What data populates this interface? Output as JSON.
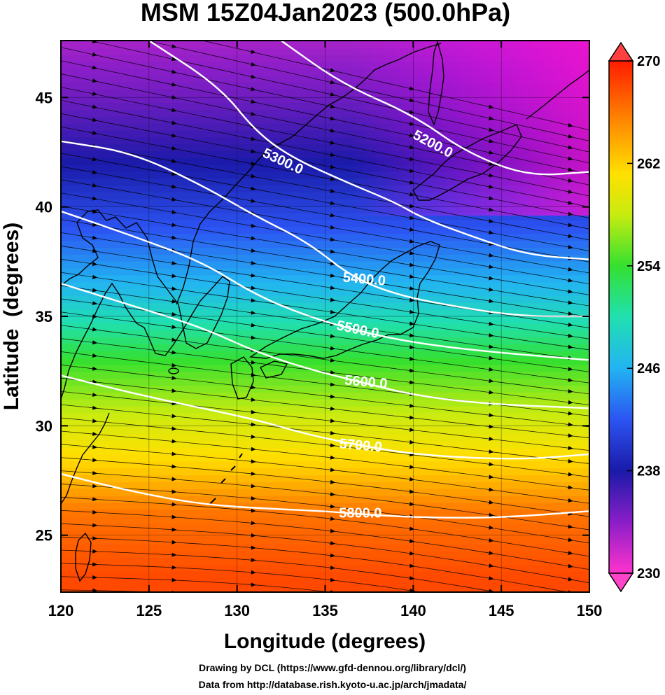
{
  "chart_data": {
    "type": "heatmap",
    "title": "MSM 15Z04Jan2023 (500.0hPa)",
    "xlabel": "Longitude (degrees)",
    "ylabel": "Latitude  (degrees)",
    "xlim": [
      120,
      150
    ],
    "ylim": [
      22.4,
      47.6
    ],
    "x_ticks": [
      120,
      125,
      130,
      135,
      140,
      145,
      150
    ],
    "y_ticks": [
      25,
      30,
      35,
      40,
      45
    ],
    "colorbar": {
      "min": 230,
      "max": 270,
      "ticks": [
        230,
        238,
        246,
        254,
        262,
        270
      ],
      "extend": "both"
    },
    "temperature_rows": [
      {
        "lat": 23,
        "value": 268
      },
      {
        "lat": 26,
        "value": 266
      },
      {
        "lat": 28,
        "value": 262
      },
      {
        "lat": 30,
        "value": 259
      },
      {
        "lat": 33,
        "value": 254
      },
      {
        "lat": 36,
        "value": 247
      },
      {
        "lat": 39,
        "value": 242
      },
      {
        "lat": 42,
        "value": 238
      },
      {
        "lat": 45,
        "value": 235
      },
      {
        "lat": 47.6,
        "value": 233
      }
    ],
    "contours": [
      {
        "label": "5200.0",
        "points": [
          [
            132.5,
            47.6
          ],
          [
            136,
            45.6
          ],
          [
            140,
            44.2
          ],
          [
            143,
            42.5
          ],
          [
            146.5,
            41.4
          ],
          [
            150,
            41.6
          ]
        ]
      },
      {
        "label": "5300.0",
        "points": [
          [
            125,
            47.6
          ],
          [
            129,
            45.5
          ],
          [
            131,
            43.5
          ],
          [
            133,
            42.3
          ],
          [
            136,
            41.2
          ],
          [
            139,
            40.2
          ],
          [
            140.5,
            39.5
          ],
          [
            143.5,
            38.6
          ],
          [
            146.5,
            37.8
          ],
          [
            150,
            37.6
          ]
        ]
      },
      {
        "label": "5400.0",
        "points": [
          [
            120,
            43.0
          ],
          [
            124,
            42.5
          ],
          [
            128,
            41.0
          ],
          [
            131,
            39.6
          ],
          [
            134,
            38.4
          ],
          [
            136.5,
            36.8
          ],
          [
            139,
            36.0
          ],
          [
            142,
            35.5
          ],
          [
            146,
            35.0
          ],
          [
            150,
            35.0
          ]
        ]
      },
      {
        "label": "5500.0",
        "points": [
          [
            120,
            39.8
          ],
          [
            124,
            38.7
          ],
          [
            128,
            37.5
          ],
          [
            131,
            36.0
          ],
          [
            134,
            35.0
          ],
          [
            137,
            34.3
          ],
          [
            140,
            33.8
          ],
          [
            144,
            33.4
          ],
          [
            150,
            33.0
          ]
        ]
      },
      {
        "label": "5600.0",
        "points": [
          [
            120,
            36.5
          ],
          [
            124,
            35.5
          ],
          [
            128,
            34.5
          ],
          [
            131,
            33.4
          ],
          [
            134,
            32.6
          ],
          [
            137,
            32.0
          ],
          [
            140,
            31.4
          ],
          [
            144,
            31.0
          ],
          [
            150,
            30.8
          ]
        ]
      },
      {
        "label": "5700.0",
        "points": [
          [
            120,
            32.3
          ],
          [
            124,
            31.5
          ],
          [
            128,
            30.8
          ],
          [
            131,
            30.3
          ],
          [
            134,
            29.6
          ],
          [
            137,
            29.1
          ],
          [
            140,
            28.7
          ],
          [
            144,
            28.5
          ],
          [
            147,
            28.5
          ],
          [
            150,
            28.7
          ]
        ]
      },
      {
        "label": "5800.0",
        "points": [
          [
            120,
            27.8
          ],
          [
            124,
            27.0
          ],
          [
            128,
            26.4
          ],
          [
            132,
            26.2
          ],
          [
            135,
            26.1
          ],
          [
            138,
            25.9
          ],
          [
            141,
            25.8
          ],
          [
            145,
            25.8
          ],
          [
            150,
            26.1
          ]
        ]
      }
    ],
    "contour_label_positions": [
      {
        "label": "5200.0",
        "lon": 141.0,
        "lat": 42.7,
        "angle": 28
      },
      {
        "label": "5300.0",
        "lon": 132.5,
        "lat": 41.9,
        "angle": 25
      },
      {
        "label": "5400.0",
        "lon": 137.2,
        "lat": 36.5,
        "angle": 5
      },
      {
        "label": "5500.0",
        "lon": 136.8,
        "lat": 34.2,
        "angle": 12
      },
      {
        "label": "5600.0",
        "lon": 137.3,
        "lat": 31.8,
        "angle": 5
      },
      {
        "label": "5700.0",
        "lon": 137.0,
        "lat": 28.9,
        "angle": 5
      },
      {
        "label": "5800.0",
        "lon": 137.0,
        "lat": 25.8,
        "angle": 0
      }
    ]
  },
  "footer": {
    "line1": "Drawing by DCL (https://www.gfd-dennou.org/library/dcl/)",
    "line2": "Data from http://database.rish.kyoto-u.ac.jp/arch/jmadata/"
  }
}
